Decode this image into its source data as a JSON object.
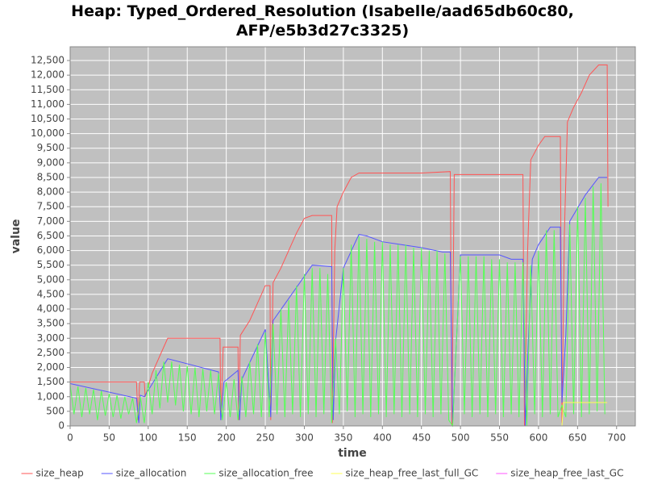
{
  "chart_data": {
    "type": "line",
    "title": "Heap: Typed_Ordered_Resolution (Isabelle/aad65db60c80, AFP/e5b3d27c3325)",
    "x_label": "time",
    "y_label": "value",
    "xlim": [
      0,
      724
    ],
    "ylim": [
      0,
      12970
    ],
    "xticks": [
      0,
      50,
      100,
      150,
      200,
      250,
      300,
      350,
      400,
      450,
      500,
      550,
      600,
      650,
      700
    ],
    "yticks": [
      0,
      500,
      {
        "value": 1000,
        "label": "1,000"
      },
      {
        "value": 1500,
        "label": "1,500"
      },
      {
        "value": 2000,
        "label": "2,000"
      },
      {
        "value": 2500,
        "label": "2,500"
      },
      {
        "value": 3000,
        "label": "3,000"
      },
      {
        "value": 3500,
        "label": "3,500"
      },
      {
        "value": 4000,
        "label": "4,000"
      },
      {
        "value": 4500,
        "label": "4,500"
      },
      {
        "value": 5000,
        "label": "5,000"
      },
      {
        "value": 5500,
        "label": "5,500"
      },
      {
        "value": 6000,
        "label": "6,000"
      },
      {
        "value": 6500,
        "label": "6,500"
      },
      {
        "value": 7000,
        "label": "7,000"
      },
      {
        "value": 7500,
        "label": "7,500"
      },
      {
        "value": 8000,
        "label": "8,000"
      },
      {
        "value": 8500,
        "label": "8,500"
      },
      {
        "value": 9000,
        "label": "9,000"
      },
      {
        "value": 9500,
        "label": "9,500"
      },
      {
        "value": 10000,
        "label": "10,000"
      },
      {
        "value": 10500,
        "label": "10,500"
      },
      {
        "value": 11000,
        "label": "11,000"
      },
      {
        "value": 11500,
        "label": "11,500"
      },
      {
        "value": 12000,
        "label": "12,000"
      },
      {
        "value": 12500,
        "label": "12,500"
      }
    ],
    "grid": true,
    "legend": "bottom",
    "series": [
      {
        "name": "size_heap",
        "color": "#ff5555",
        "x": [
          0,
          85,
          87,
          89,
          95,
          96,
          105,
          115,
          125,
          192,
          193,
          196,
          215,
          216,
          218,
          230,
          240,
          250,
          256,
          257,
          260,
          270,
          280,
          290,
          300,
          310,
          335,
          336,
          339,
          342,
          350,
          360,
          370,
          420,
          450,
          487,
          489,
          492,
          580,
          582,
          586,
          590,
          600,
          608,
          628,
          630,
          633,
          637,
          645,
          655,
          665,
          677,
          688,
          689
        ],
        "values": [
          1500,
          1500,
          200,
          1500,
          1500,
          1000,
          1800,
          2400,
          3000,
          3000,
          200,
          2700,
          2700,
          200,
          3100,
          3600,
          4200,
          4800,
          4800,
          200,
          4900,
          5400,
          6000,
          6600,
          7100,
          7200,
          7200,
          100,
          6000,
          7500,
          8000,
          8500,
          8650,
          8650,
          8650,
          8700,
          0,
          8600,
          8600,
          0,
          6000,
          9100,
          9600,
          9900,
          9900,
          100,
          6500,
          10400,
          10900,
          11400,
          12000,
          12350,
          12350,
          7500
        ]
      },
      {
        "name": "size_allocation",
        "color": "#5555ff",
        "x": [
          0,
          85,
          88,
          90,
          95,
          125,
          190,
          193,
          197,
          215,
          217,
          220,
          250,
          257,
          260,
          310,
          335,
          337,
          340,
          350,
          370,
          380,
          400,
          450,
          477,
          487,
          490,
          495,
          500,
          520,
          550,
          565,
          580,
          583,
          587,
          592,
          600,
          615,
          628,
          630,
          635,
          640,
          660,
          677,
          688
        ],
        "values": [
          1450,
          950,
          100,
          1050,
          1000,
          2300,
          1850,
          200,
          1500,
          1900,
          200,
          1600,
          3300,
          300,
          3600,
          5500,
          5450,
          200,
          2900,
          5400,
          6550,
          6500,
          6300,
          6100,
          5950,
          5950,
          100,
          3000,
          5850,
          5850,
          5850,
          5700,
          5700,
          0,
          3000,
          5700,
          6200,
          6800,
          6800,
          800,
          3100,
          7000,
          7900,
          8500,
          8500
        ]
      },
      {
        "name": "size_allocation_free",
        "color": "#55ff55",
        "x": [
          0,
          5,
          10,
          15,
          20,
          25,
          30,
          35,
          40,
          45,
          50,
          55,
          60,
          65,
          70,
          75,
          80,
          85,
          90,
          95,
          100,
          105,
          110,
          115,
          120,
          125,
          130,
          135,
          140,
          145,
          150,
          155,
          160,
          165,
          170,
          175,
          180,
          185,
          190,
          195,
          200,
          205,
          210,
          215,
          220,
          225,
          230,
          235,
          240,
          245,
          250,
          255,
          260,
          265,
          270,
          275,
          280,
          285,
          290,
          295,
          300,
          305,
          310,
          315,
          320,
          325,
          330,
          335,
          340,
          345,
          350,
          355,
          360,
          365,
          370,
          375,
          380,
          385,
          390,
          395,
          400,
          405,
          410,
          415,
          420,
          425,
          430,
          435,
          440,
          445,
          450,
          455,
          460,
          465,
          470,
          475,
          480,
          485,
          490,
          495,
          500,
          505,
          510,
          515,
          520,
          525,
          530,
          535,
          540,
          545,
          550,
          555,
          560,
          565,
          570,
          575,
          580,
          585,
          590,
          595,
          600,
          605,
          610,
          615,
          620,
          625,
          630,
          635,
          640,
          645,
          650,
          655,
          660,
          665,
          670,
          675,
          680,
          685
        ],
        "values": [
          1400,
          400,
          1350,
          300,
          1300,
          400,
          1250,
          200,
          1200,
          350,
          1100,
          300,
          1050,
          250,
          1000,
          400,
          950,
          100,
          1000,
          100,
          1500,
          400,
          1900,
          600,
          2200,
          800,
          2200,
          700,
          2100,
          500,
          2050,
          400,
          2000,
          300,
          1950,
          500,
          1900,
          400,
          1800,
          200,
          1500,
          300,
          1600,
          200,
          1700,
          300,
          2200,
          400,
          2800,
          300,
          3200,
          300,
          3500,
          400,
          4000,
          300,
          4300,
          400,
          4800,
          300,
          5200,
          400,
          5400,
          300,
          5400,
          400,
          5200,
          100,
          3000,
          400,
          5400,
          500,
          6200,
          300,
          6500,
          400,
          6400,
          300,
          6300,
          400,
          6300,
          300,
          6200,
          400,
          6200,
          300,
          6200,
          400,
          6100,
          300,
          6100,
          400,
          6000,
          300,
          6000,
          400,
          5900,
          200,
          0,
          3000,
          5800,
          400,
          5800,
          300,
          5800,
          400,
          5800,
          300,
          5700,
          400,
          5700,
          300,
          5600,
          400,
          5600,
          300,
          5600,
          0,
          5500,
          400,
          6000,
          300,
          6700,
          400,
          6700,
          300,
          700,
          300,
          6900,
          400,
          7500,
          300,
          7800,
          400,
          8200,
          500,
          8300,
          400
        ]
      },
      {
        "name": "size_heap_free_last_full_GC",
        "color": "#ffff55",
        "x": [
          0,
          630,
          632,
          688
        ],
        "values": [
          0,
          0,
          800,
          800
        ]
      },
      {
        "name": "size_heap_free_last_GC",
        "color": "#ff55ff",
        "x": [
          0,
          688
        ],
        "values": [
          0,
          0
        ]
      }
    ]
  }
}
